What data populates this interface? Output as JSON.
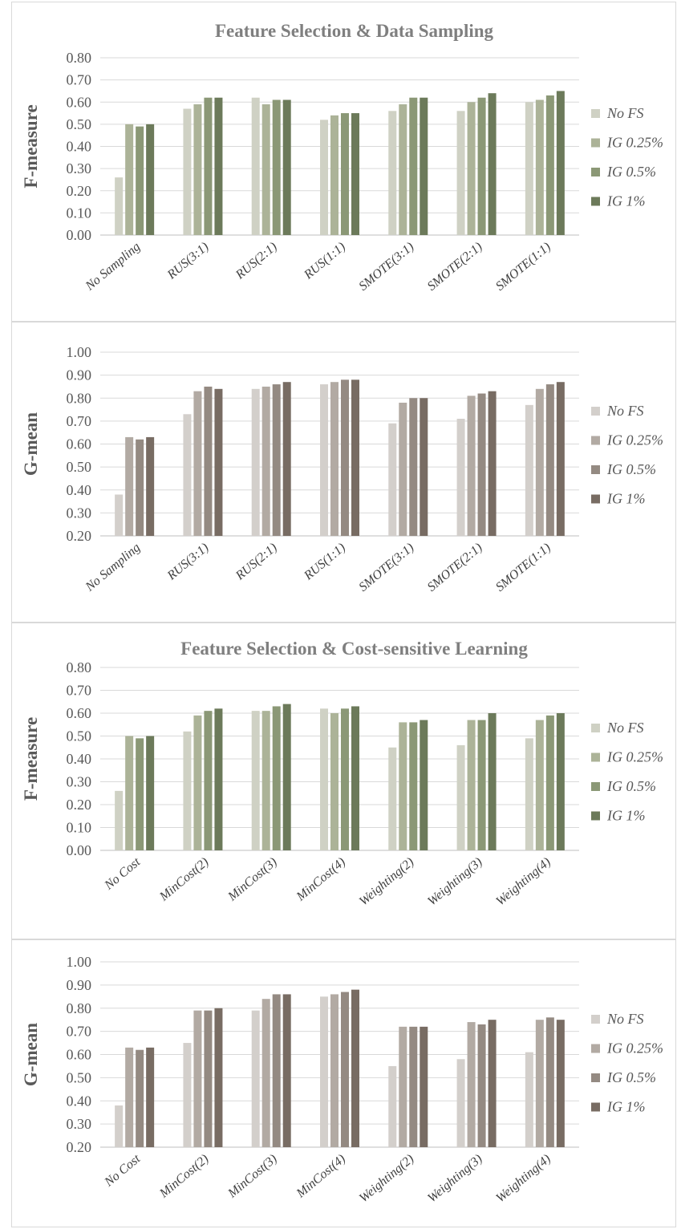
{
  "chart_data": [
    {
      "type": "bar",
      "title": "Feature Selection & Data Sampling",
      "ylabel": "F-measure",
      "xlabel": "",
      "ylim": [
        0,
        0.8
      ],
      "yticks": [
        "0.00",
        "0.10",
        "0.20",
        "0.30",
        "0.40",
        "0.50",
        "0.60",
        "0.70",
        "0.80"
      ],
      "categories": [
        "No Sampling",
        "RUS(3:1)",
        "RUS(2:1)",
        "RUS(1:1)",
        "SMOTE(3:1)",
        "SMOTE(2:1)",
        "SMOTE(1:1)"
      ],
      "legend_position": "right",
      "series": [
        {
          "name": "No FS",
          "color": "#cfd1c4",
          "values": [
            0.26,
            0.57,
            0.62,
            0.52,
            0.56,
            0.56,
            0.6
          ]
        },
        {
          "name": "IG 0.25%",
          "color": "#acb398",
          "values": [
            0.5,
            0.59,
            0.59,
            0.54,
            0.59,
            0.6,
            0.61
          ]
        },
        {
          "name": "IG 0.5%",
          "color": "#8b9876",
          "values": [
            0.49,
            0.62,
            0.61,
            0.55,
            0.62,
            0.62,
            0.63
          ]
        },
        {
          "name": "IG 1%",
          "color": "#6c7a5a",
          "values": [
            0.5,
            0.62,
            0.61,
            0.55,
            0.62,
            0.64,
            0.65
          ]
        }
      ]
    },
    {
      "type": "bar",
      "title": "",
      "ylabel": "G-mean",
      "xlabel": "",
      "ylim": [
        0.2,
        1.0
      ],
      "yticks": [
        "0.20",
        "0.30",
        "0.40",
        "0.50",
        "0.60",
        "0.70",
        "0.80",
        "0.90",
        "1.00"
      ],
      "categories": [
        "No Sampling",
        "RUS(3:1)",
        "RUS(2:1)",
        "RUS(1:1)",
        "SMOTE(3:1)",
        "SMOTE(2:1)",
        "SMOTE(1:1)"
      ],
      "legend_position": "right",
      "series": [
        {
          "name": "No FS",
          "color": "#d3cfcb",
          "values": [
            0.38,
            0.73,
            0.84,
            0.86,
            0.69,
            0.71,
            0.77
          ]
        },
        {
          "name": "IG 0.25%",
          "color": "#b2aaa3",
          "values": [
            0.63,
            0.83,
            0.85,
            0.87,
            0.78,
            0.81,
            0.84
          ]
        },
        {
          "name": "IG 0.5%",
          "color": "#948a82",
          "values": [
            0.62,
            0.85,
            0.86,
            0.88,
            0.8,
            0.82,
            0.86
          ]
        },
        {
          "name": "IG 1%",
          "color": "#786c63",
          "values": [
            0.63,
            0.84,
            0.87,
            0.88,
            0.8,
            0.83,
            0.87
          ]
        }
      ]
    },
    {
      "type": "bar",
      "title": "Feature Selection & Cost-sensitive Learning",
      "ylabel": "F-measure",
      "xlabel": "",
      "ylim": [
        0,
        0.8
      ],
      "yticks": [
        "0.00",
        "0.10",
        "0.20",
        "0.30",
        "0.40",
        "0.50",
        "0.60",
        "0.70",
        "0.80"
      ],
      "categories": [
        "No Cost",
        "MinCost(2)",
        "MinCost(3)",
        "MinCost(4)",
        "Weighting(2)",
        "Weighting(3)",
        "Weighting(4)"
      ],
      "legend_position": "right",
      "series": [
        {
          "name": "No FS",
          "color": "#cfd1c4",
          "values": [
            0.26,
            0.52,
            0.61,
            0.62,
            0.45,
            0.46,
            0.49
          ]
        },
        {
          "name": "IG 0.25%",
          "color": "#acb398",
          "values": [
            0.5,
            0.59,
            0.61,
            0.6,
            0.56,
            0.57,
            0.57
          ]
        },
        {
          "name": "IG 0.5%",
          "color": "#8b9876",
          "values": [
            0.49,
            0.61,
            0.63,
            0.62,
            0.56,
            0.57,
            0.59
          ]
        },
        {
          "name": "IG 1%",
          "color": "#6c7a5a",
          "values": [
            0.5,
            0.62,
            0.64,
            0.63,
            0.57,
            0.6,
            0.6
          ]
        }
      ]
    },
    {
      "type": "bar",
      "title": "",
      "ylabel": "G-mean",
      "xlabel": "",
      "ylim": [
        0.2,
        1.0
      ],
      "yticks": [
        "0.20",
        "0.30",
        "0.40",
        "0.50",
        "0.60",
        "0.70",
        "0.80",
        "0.90",
        "1.00"
      ],
      "categories": [
        "No Cost",
        "MinCost(2)",
        "MinCost(3)",
        "MinCost(4)",
        "Weighting(2)",
        "Weighting(3)",
        "Weighting(4)"
      ],
      "legend_position": "right",
      "series": [
        {
          "name": "No FS",
          "color": "#d3cfcb",
          "values": [
            0.38,
            0.65,
            0.79,
            0.85,
            0.55,
            0.58,
            0.61
          ]
        },
        {
          "name": "IG 0.25%",
          "color": "#b2aaa3",
          "values": [
            0.63,
            0.79,
            0.84,
            0.86,
            0.72,
            0.74,
            0.75
          ]
        },
        {
          "name": "IG 0.5%",
          "color": "#948a82",
          "values": [
            0.62,
            0.79,
            0.86,
            0.87,
            0.72,
            0.73,
            0.76
          ]
        },
        {
          "name": "IG 1%",
          "color": "#786c63",
          "values": [
            0.63,
            0.8,
            0.86,
            0.88,
            0.72,
            0.75,
            0.75
          ]
        }
      ]
    }
  ]
}
